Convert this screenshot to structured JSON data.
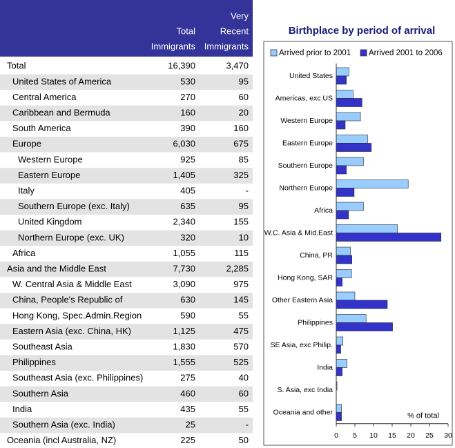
{
  "table": {
    "columns": [
      [
        "Total",
        "Immigrants"
      ],
      [
        "Very",
        "Recent",
        "Immigrants"
      ]
    ],
    "rows": [
      [
        "Total",
        "16,390",
        "3,470"
      ],
      [
        "United States of America",
        "530",
        "95"
      ],
      [
        "Central America",
        "270",
        "60"
      ],
      [
        "Caribbean and Bermuda",
        "160",
        "20"
      ],
      [
        "South America",
        "390",
        "160"
      ],
      [
        "Europe",
        "6,030",
        "675"
      ],
      [
        "Western Europe",
        "925",
        "85"
      ],
      [
        "Eastern Europe",
        "1,405",
        "325"
      ],
      [
        "Italy",
        "405",
        "-"
      ],
      [
        "Southern Europe (exc. Italy)",
        "635",
        "95"
      ],
      [
        "United Kingdom",
        "2,340",
        "155"
      ],
      [
        "Northern Europe (exc. UK)",
        "320",
        "10"
      ],
      [
        "Africa",
        "1,055",
        "115"
      ],
      [
        "Asia and the Middle East",
        "7,730",
        "2,285"
      ],
      [
        "W. Central Asia & Middle East",
        "3,090",
        "975"
      ],
      [
        "China, People's Republic of",
        "630",
        "145"
      ],
      [
        "Hong Kong, Spec.Admin.Region",
        "590",
        "55"
      ],
      [
        "Eastern Asia (exc. China, HK)",
        "1,125",
        "475"
      ],
      [
        "Southeast Asia",
        "1,830",
        "570"
      ],
      [
        "Philippines",
        "1,555",
        "525"
      ],
      [
        "Southeast Asia (exc. Philippines)",
        "275",
        "40"
      ],
      [
        "Southern Asia",
        "460",
        "60"
      ],
      [
        "India",
        "435",
        "55"
      ],
      [
        "Southern Asia (exc. India)",
        "25",
        "-"
      ],
      [
        "Oceania (incl Australia, NZ)",
        "225",
        "50"
      ]
    ]
  },
  "chart_data": {
    "type": "bar",
    "orientation": "horizontal",
    "title": "Birthplace by period of arrival",
    "categories": [
      "United States",
      "Americas, exc US",
      "Western Europe",
      "Eastern Europe",
      "Southern Europe",
      "Northern Europe",
      "Africa",
      "W.C. Asia & Mid.East",
      "China, PR",
      "Hong Kong, SAR",
      "Other Eastern Asia",
      "Philippines",
      "SE Asia, exc Philip.",
      "India",
      "S. Asia, exc India",
      "Oceania and other"
    ],
    "series": [
      {
        "name": "Arrived prior to 2001",
        "color": "#99ccff",
        "values": [
          3.4,
          4.5,
          6.5,
          8.4,
          7.3,
          19.3,
          7.3,
          16.4,
          3.8,
          4.1,
          5.0,
          8.0,
          1.8,
          2.9,
          0.2,
          1.4
        ]
      },
      {
        "name": "Arrived 2001 to 2006",
        "color": "#3333cc",
        "values": [
          2.7,
          6.9,
          2.4,
          9.4,
          2.7,
          4.8,
          3.3,
          28.1,
          4.2,
          1.6,
          13.7,
          15.1,
          1.2,
          1.6,
          0,
          1.4
        ]
      }
    ],
    "xlabel": "% of total",
    "xlim": [
      0,
      30
    ],
    "xticks": [
      0,
      5,
      10,
      15,
      20,
      25,
      30
    ],
    "legend": "top"
  }
}
